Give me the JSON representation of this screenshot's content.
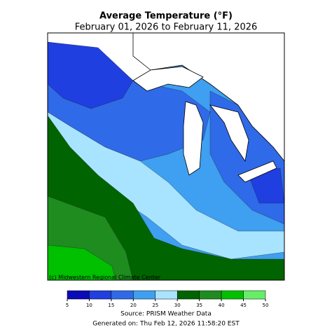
{
  "map": {
    "title": "Average Temperature (°F)",
    "subtitle": "February 01, 2026 to February 11, 2026",
    "credit": "(c) Midwestern Regional Climate Center",
    "source": "Source: PRISM Weather Data",
    "generated": "Generated on: Thu Feb 12, 2026 11:58:20 EST",
    "legend": {
      "ticks": [
        5,
        10,
        15,
        20,
        25,
        30,
        35,
        40,
        45,
        50
      ],
      "colors": [
        "#0a0ab8",
        "#1f3fe0",
        "#2f6ae8",
        "#3fa0f0",
        "#a8e4ff",
        "#006400",
        "#1e8c1e",
        "#00c000",
        "#66ee66"
      ]
    }
  }
}
